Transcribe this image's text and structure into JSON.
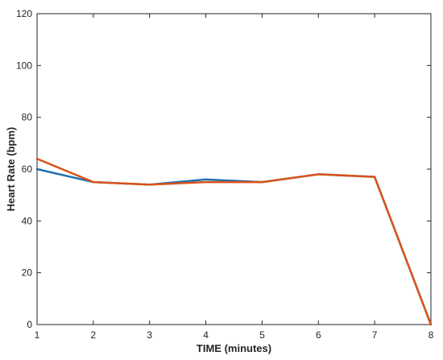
{
  "chart_data": {
    "type": "line",
    "title": "",
    "xlabel": "TIME (minutes)",
    "ylabel": "Heart Rate (bpm)",
    "xlim": [
      1,
      8
    ],
    "ylim": [
      0,
      120
    ],
    "x_ticks": [
      1,
      2,
      3,
      4,
      5,
      6,
      7,
      8
    ],
    "y_ticks": [
      0,
      20,
      40,
      60,
      80,
      100,
      120
    ],
    "grid": false,
    "legend": "none",
    "x": [
      1,
      2,
      3,
      4,
      5,
      6,
      7,
      8
    ],
    "series": [
      {
        "color": "#1f6fb0",
        "values": [
          60,
          55,
          54,
          56,
          55,
          58,
          57,
          0
        ]
      },
      {
        "color": "#d95319",
        "values": [
          64,
          55,
          54,
          55,
          55,
          58,
          57,
          0
        ]
      }
    ]
  }
}
